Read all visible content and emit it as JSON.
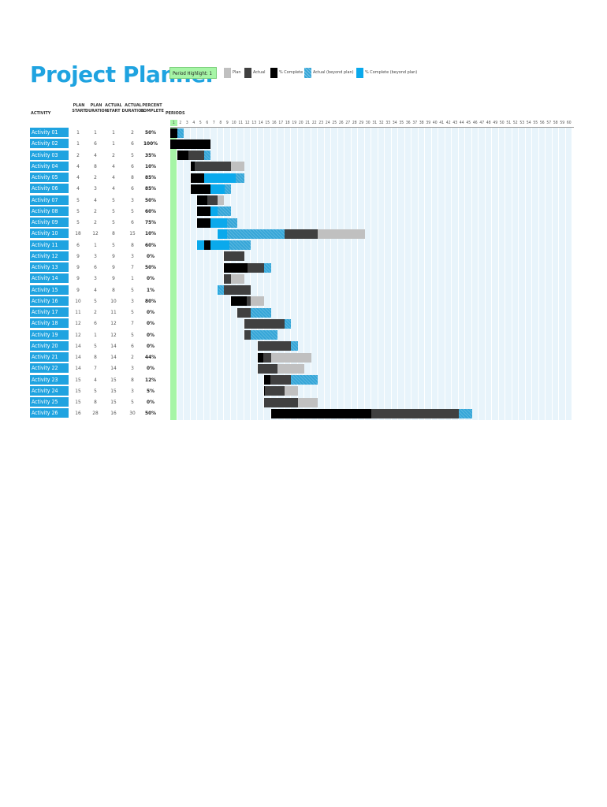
{
  "title": "Project Planner",
  "period_highlight": {
    "label": "Period Highlight:",
    "value": "1"
  },
  "legend": [
    {
      "label": "Plan",
      "color": "#c0c0c0"
    },
    {
      "label": "Actual",
      "color": "#404040"
    },
    {
      "label": "% Complete",
      "color": "#000000"
    },
    {
      "label": "Actual (beyond plan)",
      "color": "#35a6d8"
    },
    {
      "label": "% Complete (beyond plan)",
      "color": "#0aa9ec"
    }
  ],
  "headers": {
    "activity": "ACTIVITY",
    "plan_start": [
      "PLAN",
      "START"
    ],
    "plan_duration": [
      "PLAN",
      "DURATION"
    ],
    "actual_start": [
      "ACTUAL",
      "START"
    ],
    "actual_duration": [
      "ACTUAL",
      "DURATION"
    ],
    "percent_complete": [
      "PERCENT",
      "COMPLETE"
    ],
    "periods": "PERIODS"
  },
  "period_count": 60,
  "activities": [
    {
      "name": "Activity 01",
      "plan_start": 1,
      "plan_duration": 1,
      "actual_start": 1,
      "actual_duration": 2,
      "percent": "50%"
    },
    {
      "name": "Activity 02",
      "plan_start": 1,
      "plan_duration": 6,
      "actual_start": 1,
      "actual_duration": 6,
      "percent": "100%"
    },
    {
      "name": "Activity 03",
      "plan_start": 2,
      "plan_duration": 4,
      "actual_start": 2,
      "actual_duration": 5,
      "percent": "35%"
    },
    {
      "name": "Activity 04",
      "plan_start": 4,
      "plan_duration": 8,
      "actual_start": 4,
      "actual_duration": 6,
      "percent": "10%"
    },
    {
      "name": "Activity 05",
      "plan_start": 4,
      "plan_duration": 2,
      "actual_start": 4,
      "actual_duration": 8,
      "percent": "85%"
    },
    {
      "name": "Activity 06",
      "plan_start": 4,
      "plan_duration": 3,
      "actual_start": 4,
      "actual_duration": 6,
      "percent": "85%"
    },
    {
      "name": "Activity 07",
      "plan_start": 5,
      "plan_duration": 4,
      "actual_start": 5,
      "actual_duration": 3,
      "percent": "50%"
    },
    {
      "name": "Activity 08",
      "plan_start": 5,
      "plan_duration": 2,
      "actual_start": 5,
      "actual_duration": 5,
      "percent": "60%"
    },
    {
      "name": "Activity 09",
      "plan_start": 5,
      "plan_duration": 2,
      "actual_start": 5,
      "actual_duration": 6,
      "percent": "75%"
    },
    {
      "name": "Activity 10",
      "plan_start": 18,
      "plan_duration": 12,
      "actual_start": 8,
      "actual_duration": 15,
      "percent": "10%"
    },
    {
      "name": "Activity 11",
      "plan_start": 6,
      "plan_duration": 1,
      "actual_start": 5,
      "actual_duration": 8,
      "percent": "60%"
    },
    {
      "name": "Activity 12",
      "plan_start": 9,
      "plan_duration": 3,
      "actual_start": 9,
      "actual_duration": 3,
      "percent": "0%"
    },
    {
      "name": "Activity 13",
      "plan_start": 9,
      "plan_duration": 6,
      "actual_start": 9,
      "actual_duration": 7,
      "percent": "50%"
    },
    {
      "name": "Activity 14",
      "plan_start": 9,
      "plan_duration": 3,
      "actual_start": 9,
      "actual_duration": 1,
      "percent": "0%"
    },
    {
      "name": "Activity 15",
      "plan_start": 9,
      "plan_duration": 4,
      "actual_start": 8,
      "actual_duration": 5,
      "percent": "1%"
    },
    {
      "name": "Activity 16",
      "plan_start": 10,
      "plan_duration": 5,
      "actual_start": 10,
      "actual_duration": 3,
      "percent": "80%"
    },
    {
      "name": "Activity 17",
      "plan_start": 11,
      "plan_duration": 2,
      "actual_start": 11,
      "actual_duration": 5,
      "percent": "0%"
    },
    {
      "name": "Activity 18",
      "plan_start": 12,
      "plan_duration": 6,
      "actual_start": 12,
      "actual_duration": 7,
      "percent": "0%"
    },
    {
      "name": "Activity 19",
      "plan_start": 12,
      "plan_duration": 1,
      "actual_start": 12,
      "actual_duration": 5,
      "percent": "0%"
    },
    {
      "name": "Activity 20",
      "plan_start": 14,
      "plan_duration": 5,
      "actual_start": 14,
      "actual_duration": 6,
      "percent": "0%"
    },
    {
      "name": "Activity 21",
      "plan_start": 14,
      "plan_duration": 8,
      "actual_start": 14,
      "actual_duration": 2,
      "percent": "44%"
    },
    {
      "name": "Activity 22",
      "plan_start": 14,
      "plan_duration": 7,
      "actual_start": 14,
      "actual_duration": 3,
      "percent": "0%"
    },
    {
      "name": "Activity 23",
      "plan_start": 15,
      "plan_duration": 4,
      "actual_start": 15,
      "actual_duration": 8,
      "percent": "12%"
    },
    {
      "name": "Activity 24",
      "plan_start": 15,
      "plan_duration": 5,
      "actual_start": 15,
      "actual_duration": 3,
      "percent": "5%"
    },
    {
      "name": "Activity 25",
      "plan_start": 15,
      "plan_duration": 8,
      "actual_start": 15,
      "actual_duration": 5,
      "percent": "0%"
    },
    {
      "name": "Activity 26",
      "plan_start": 16,
      "plan_duration": 28,
      "actual_start": 16,
      "actual_duration": 30,
      "percent": "50%"
    }
  ]
}
